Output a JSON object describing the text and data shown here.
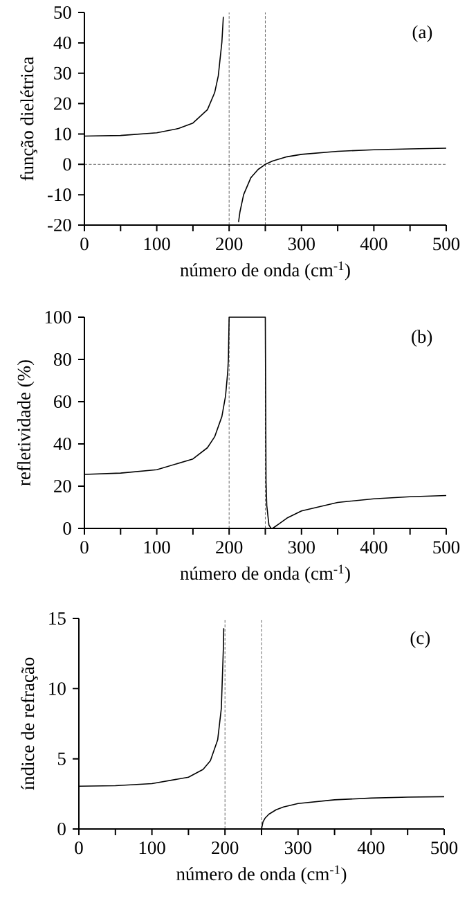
{
  "chart_data": [
    {
      "type": "line",
      "xlabel": "número de onda (cm$^{-1}$)",
      "ylabel": "função dielétrica",
      "annotations": [
        "(a)"
      ],
      "x": [
        0,
        50,
        100,
        130,
        150,
        170,
        180,
        185,
        190,
        192,
        200,
        213,
        215,
        220,
        230,
        240,
        250,
        260,
        280,
        300,
        350,
        400,
        450,
        500
      ],
      "values": [
        9.3,
        9.5,
        10.4,
        11.8,
        13.6,
        18.0,
        23.6,
        29.1,
        40.3,
        48.6,
        null,
        -19.0,
        -15.6,
        -10.0,
        -4.4,
        -1.7,
        0,
        1.1,
        2.5,
        3.3,
        4.3,
        4.8,
        5.1,
        5.3
      ],
      "color": "#000000",
      "xlim": [
        0,
        500
      ],
      "ylim": [
        -20,
        50
      ],
      "xticks": [
        0,
        {
          "value": 50,
          "label": null
        },
        100,
        {
          "value": 150,
          "label": null
        },
        200,
        {
          "value": 250,
          "label": null
        },
        300,
        {
          "value": 350,
          "label": null
        },
        400,
        {
          "value": 450,
          "label": null
        },
        500
      ],
      "yticks": [
        -20,
        -10,
        0,
        10,
        20,
        30,
        40,
        50
      ],
      "ref_lines": [
        {
          "axis": "x",
          "value": 200,
          "line_style": "dashed"
        },
        {
          "axis": "x",
          "value": 250,
          "line_style": "dashed"
        },
        {
          "axis": "y",
          "value": 0,
          "line_style": "dashed"
        }
      ]
    },
    {
      "type": "line",
      "xlabel": "número de onda (cm$^{-1}$)",
      "ylabel": "refletividade (%)",
      "annotations": [
        "(b)"
      ],
      "x": [
        0,
        50,
        100,
        150,
        170,
        180,
        190,
        195,
        198,
        199,
        200,
        250,
        251,
        252,
        255,
        258,
        260,
        270,
        280,
        300,
        350,
        400,
        450,
        500
      ],
      "values": [
        25.6,
        26.2,
        27.8,
        32.9,
        38.2,
        43.4,
        53.0,
        62.6,
        73.8,
        80.5,
        100,
        100,
        22.1,
        10.9,
        1.6,
        0,
        0,
        2.4,
        4.9,
        8.3,
        12.3,
        14.0,
        15.0,
        15.6
      ],
      "color": "#000000",
      "xlim": [
        0,
        500
      ],
      "ylim": [
        0,
        100
      ],
      "xticks": [
        0,
        {
          "value": 50,
          "label": null
        },
        100,
        {
          "value": 150,
          "label": null
        },
        200,
        {
          "value": 250,
          "label": null
        },
        300,
        {
          "value": 350,
          "label": null
        },
        400,
        {
          "value": 450,
          "label": null
        },
        500
      ],
      "yticks": [
        0,
        20,
        40,
        60,
        80,
        100
      ],
      "ref_lines": [
        {
          "axis": "x",
          "value": 200,
          "line_style": "dashed"
        },
        {
          "axis": "x",
          "value": 250,
          "line_style": "dashed"
        }
      ]
    },
    {
      "type": "line",
      "xlabel": "número de onda (cm$^{-1}$)",
      "ylabel": "índice de refração",
      "annotations": [
        "(c)"
      ],
      "x": [
        0,
        50,
        100,
        150,
        170,
        180,
        190,
        195,
        198,
        198.3,
        220,
        250,
        252,
        255,
        260,
        270,
        280,
        300,
        350,
        400,
        450,
        500
      ],
      "values": [
        3.05,
        3.08,
        3.23,
        3.69,
        4.24,
        4.86,
        6.35,
        8.59,
        13.2,
        14.3,
        null,
        0,
        0.5,
        0.78,
        1.05,
        1.37,
        1.57,
        1.81,
        2.08,
        2.2,
        2.27,
        2.3
      ],
      "color": "#000000",
      "xlim": [
        0,
        500
      ],
      "ylim": [
        0,
        15
      ],
      "xticks": [
        0,
        {
          "value": 50,
          "label": null
        },
        100,
        {
          "value": 150,
          "label": null
        },
        200,
        {
          "value": 250,
          "label": null
        },
        300,
        {
          "value": 350,
          "label": null
        },
        400,
        {
          "value": 450,
          "label": null
        },
        500
      ],
      "yticks": [
        0,
        5,
        10,
        15
      ],
      "ref_lines": [
        {
          "axis": "x",
          "value": 200,
          "line_style": "dashed"
        },
        {
          "axis": "x",
          "value": 250,
          "line_style": "dashed"
        }
      ]
    }
  ]
}
